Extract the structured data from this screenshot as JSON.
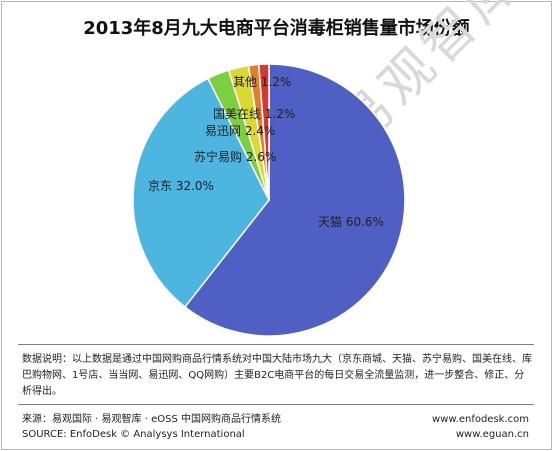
{
  "chart_data": {
    "type": "pie",
    "title": "2013年8月九大电商平台消毒柜销售量市场份额",
    "slices": [
      {
        "name": "天猫",
        "value": 60.6,
        "label": "天猫 60.6%",
        "color": "#4f5fc4"
      },
      {
        "name": "京东",
        "value": 32.0,
        "label": "京东 32.0%",
        "color": "#4cb5e0"
      },
      {
        "name": "苏宁易购",
        "value": 2.6,
        "label": "苏宁易购 2.6%",
        "color": "#7ccf3e"
      },
      {
        "name": "易迅网",
        "value": 2.4,
        "label": "易迅网 2.4%",
        "color": "#d9d932"
      },
      {
        "name": "国美在线",
        "value": 1.2,
        "label": "国美在线 1.2%",
        "color": "#e37f2c"
      },
      {
        "name": "其他",
        "value": 1.2,
        "label": "其他 1.2%",
        "color": "#d43a2f"
      }
    ]
  },
  "watermark": "易观智库",
  "description": "数据说明：以上数据是通过中国网购商品行情系统对中国大陆市场九大（京东商城、天猫、苏宁易购、国美在线、库巴购物网、1号店、当当网、易迅网、QQ网购）主要B2C电商平台的每日交易全流量监测，进一步整合、修正、分析得出。",
  "footer": {
    "source_cn": "来源：易观国际 · 易观智库 · eOSS 中国网购商品行情系统",
    "source_en": "SOURCE: EnfoDesk © Analysys International",
    "url1": "www.enfodesk.com",
    "url2": "www.eguan.cn"
  }
}
